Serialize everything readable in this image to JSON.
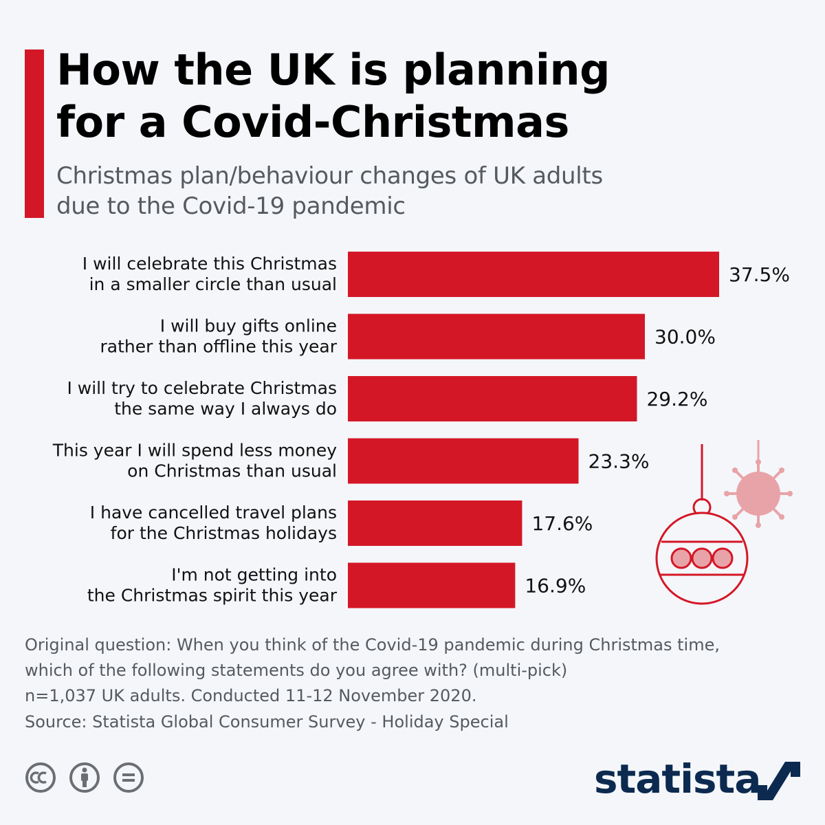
{
  "header": {
    "title_line1": "How the UK is planning",
    "title_line2": "for a Covid-Christmas",
    "subtitle_line1": "Christmas plan/behaviour changes of UK adults",
    "subtitle_line2": "due to the Covid-19 pandemic"
  },
  "chart_data": {
    "type": "bar",
    "orientation": "horizontal",
    "categories": [
      [
        "I will celebrate this Christmas",
        "in a smaller circle than usual"
      ],
      [
        "I will buy gifts online",
        "rather than offline this year"
      ],
      [
        "I will try to celebrate Christmas",
        "the same way I always do"
      ],
      [
        "This year I will spend less money",
        "on Christmas than usual"
      ],
      [
        "I have cancelled travel plans",
        "for the Christmas holidays"
      ],
      [
        "I'm not getting into",
        "the Christmas spirit this year"
      ]
    ],
    "values": [
      37.5,
      30.0,
      29.2,
      23.3,
      17.6,
      16.9
    ],
    "value_labels": [
      "37.5%",
      "30.0%",
      "29.2%",
      "23.3%",
      "17.6%",
      "16.9%"
    ],
    "unit": "%",
    "xlim": [
      0,
      37.5
    ],
    "grid": false,
    "legend": "none",
    "bar_color": "#d41726"
  },
  "footer": {
    "question_line1": "Original question: When you think of the Covid-19 pandemic during Christmas time,",
    "question_line2": "which of the following statements do you agree with? (multi-pick)",
    "sample_line": "n=1,037 UK adults. Conducted 11-12 November 2020.",
    "source": "Source: Statista Global Consumer Survey - Holiday Special",
    "license_icons": [
      "cc-icon",
      "attribution-icon",
      "no-derivatives-icon"
    ],
    "brand": "statista"
  },
  "colors": {
    "accent": "#d41726",
    "brand": "#0c2a4f",
    "decor_pink": "#e8a3a8",
    "text_muted": "#555a5f",
    "background": "#f4f6fa"
  }
}
